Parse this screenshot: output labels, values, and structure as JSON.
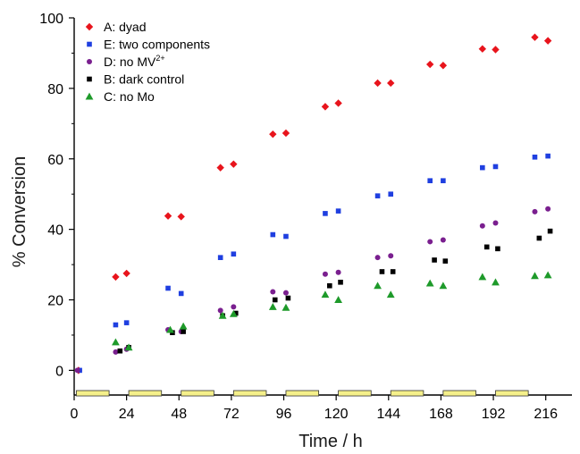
{
  "chart_data": {
    "type": "scatter",
    "xlabel": "Time / h",
    "ylabel": "% Conversion",
    "xlim": [
      0,
      228
    ],
    "ylim": [
      -7,
      100
    ],
    "xticks": [
      0,
      24,
      48,
      72,
      96,
      120,
      144,
      168,
      192,
      216
    ],
    "yticks": [
      0,
      20,
      40,
      60,
      80,
      100
    ],
    "grid": false,
    "legend_position": "top-left",
    "series": [
      {
        "name": "A: dyad",
        "legend_main": "A: dyad",
        "legend_sup": "",
        "marker": "diamond",
        "color": "#e8141c",
        "points": [
          [
            2,
            0
          ],
          [
            19,
            26.5
          ],
          [
            24,
            27.5
          ],
          [
            43,
            43.8
          ],
          [
            49,
            43.6
          ],
          [
            67,
            57.5
          ],
          [
            73,
            58.5
          ],
          [
            91,
            67
          ],
          [
            97,
            67.3
          ],
          [
            115,
            74.8
          ],
          [
            121,
            75.8
          ],
          [
            139,
            81.5
          ],
          [
            145,
            81.5
          ],
          [
            163,
            86.8
          ],
          [
            169,
            86.5
          ],
          [
            187,
            91.2
          ],
          [
            193,
            91
          ],
          [
            211,
            94.5
          ],
          [
            217,
            93.5
          ]
        ]
      },
      {
        "name": "E: two components",
        "legend_main": "E: two components",
        "legend_sup": "",
        "marker": "square",
        "color": "#1f3fe0",
        "points": [
          [
            19,
            12.9
          ],
          [
            24,
            13.5
          ],
          [
            43,
            23.3
          ],
          [
            49,
            21.8
          ],
          [
            67,
            32
          ],
          [
            73,
            33
          ],
          [
            91,
            38.5
          ],
          [
            97,
            38
          ],
          [
            115,
            44.5
          ],
          [
            121,
            45.2
          ],
          [
            139,
            49.5
          ],
          [
            145,
            50
          ],
          [
            163,
            53.8
          ],
          [
            169,
            53.8
          ],
          [
            187,
            57.5
          ],
          [
            193,
            57.8
          ],
          [
            211,
            60.5
          ],
          [
            217,
            60.8
          ]
        ]
      },
      {
        "name": "D: no MV2+",
        "legend_main": "D: no MV",
        "legend_sup": "2+",
        "marker": "circle",
        "color": "#7a1f8f",
        "points": [
          [
            19,
            5.2
          ],
          [
            24,
            6
          ],
          [
            43,
            11.5
          ],
          [
            49,
            11
          ],
          [
            67,
            17
          ],
          [
            73,
            18
          ],
          [
            91,
            22.3
          ],
          [
            97,
            22
          ],
          [
            115,
            27.3
          ],
          [
            121,
            27.8
          ],
          [
            139,
            32
          ],
          [
            145,
            32.5
          ],
          [
            163,
            36.5
          ],
          [
            169,
            37
          ],
          [
            187,
            41
          ],
          [
            193,
            41.8
          ],
          [
            211,
            45
          ],
          [
            217,
            45.8
          ]
        ]
      },
      {
        "name": "B: dark control",
        "legend_main": "B: dark control",
        "legend_sup": "",
        "marker": "square",
        "color": "#000000",
        "points": [
          [
            21,
            5.5
          ],
          [
            25,
            6.5
          ],
          [
            45,
            10.7
          ],
          [
            50,
            11
          ],
          [
            68,
            15.5
          ],
          [
            74,
            16.2
          ],
          [
            92,
            20
          ],
          [
            98,
            20.5
          ],
          [
            117,
            24
          ],
          [
            122,
            25
          ],
          [
            141,
            28
          ],
          [
            146,
            28
          ],
          [
            165,
            31.3
          ],
          [
            170,
            31
          ],
          [
            189,
            35
          ],
          [
            194,
            34.5
          ],
          [
            213,
            37.5
          ],
          [
            218,
            39.5
          ]
        ]
      },
      {
        "name": "C: no Mo",
        "legend_main": "C: no Mo",
        "legend_sup": "",
        "marker": "triangle",
        "color": "#1e9a2a",
        "points": [
          [
            19,
            8
          ],
          [
            25,
            6.5
          ],
          [
            44,
            11.5
          ],
          [
            50,
            12.5
          ],
          [
            68,
            15.5
          ],
          [
            73,
            16
          ],
          [
            91,
            18
          ],
          [
            97,
            17.8
          ],
          [
            115,
            21.5
          ],
          [
            121,
            20
          ],
          [
            139,
            24
          ],
          [
            145,
            21.5
          ],
          [
            163,
            24.7
          ],
          [
            169,
            24
          ],
          [
            187,
            26.5
          ],
          [
            193,
            25
          ],
          [
            211,
            26.8
          ],
          [
            217,
            27
          ]
        ]
      }
    ],
    "light_periods": [
      [
        1,
        16
      ],
      [
        25,
        40
      ],
      [
        49,
        64
      ],
      [
        73,
        88
      ],
      [
        97,
        112
      ],
      [
        121,
        136
      ],
      [
        145,
        160
      ],
      [
        169,
        184
      ],
      [
        193,
        208
      ]
    ],
    "colors": {
      "axis": "#000000",
      "light_bar_fill": "#f5f08a",
      "light_bar_stroke": "#333333"
    }
  }
}
